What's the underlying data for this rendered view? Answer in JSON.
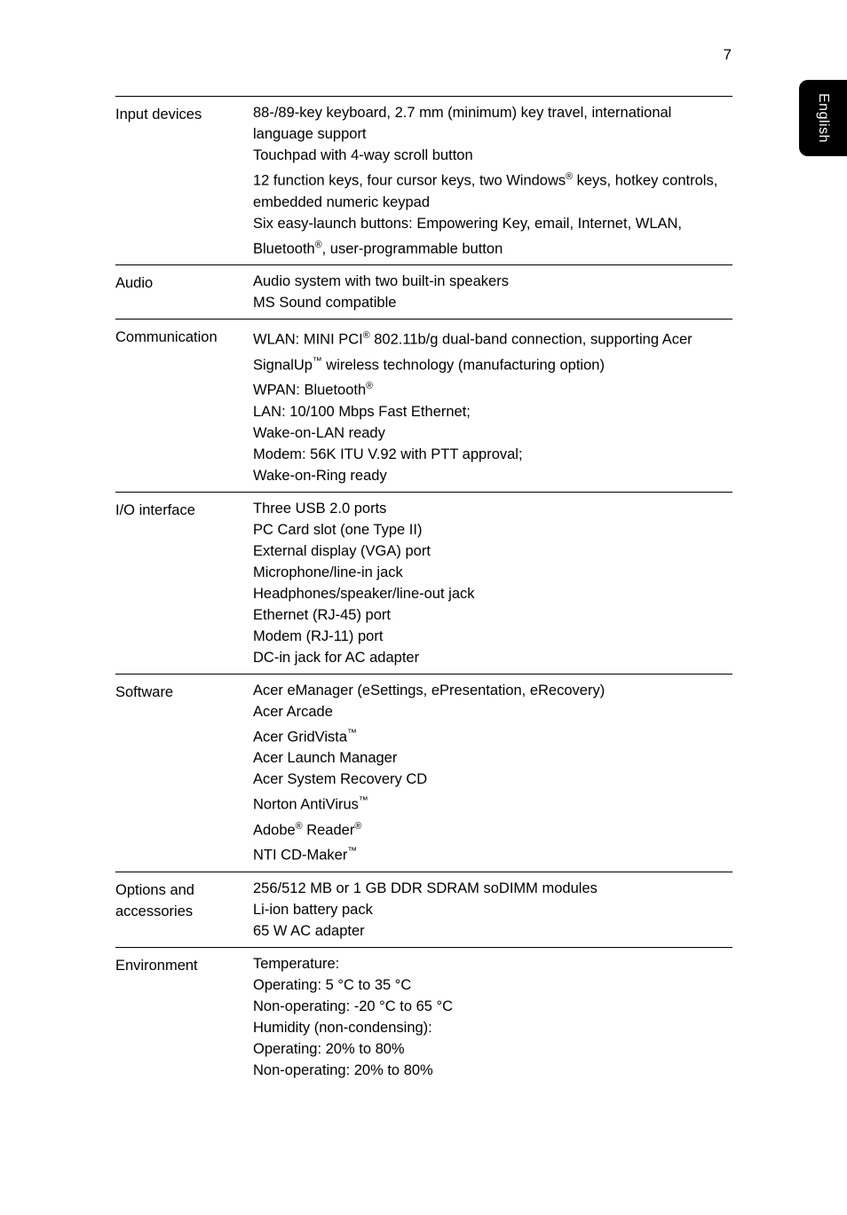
{
  "page_number": "7",
  "side_tab": "English",
  "rows": [
    {
      "label": "Input devices",
      "lines": [
        "88-/89-key keyboard, 2.7 mm (minimum) key travel, international language support",
        "Touchpad with 4-way scroll button",
        "12 function keys, four cursor keys, two Windows<sup>®</sup> keys, hotkey controls, embedded numeric keypad",
        "Six easy-launch buttons: Empowering Key, email, Internet, WLAN, Bluetooth<sup>®</sup>, user-programmable button"
      ]
    },
    {
      "label": "Audio",
      "lines": [
        "Audio system with two built-in speakers",
        "MS Sound compatible"
      ]
    },
    {
      "label": "Communication",
      "lines": [
        "WLAN: MINI PCI<sup>®</sup> 802.11b/g dual-band connection, supporting Acer SignalUp<sup>™</sup> wireless technology (manufacturing option)",
        "WPAN: Bluetooth<sup>®</sup>",
        "LAN: 10/100 Mbps Fast Ethernet;",
        "Wake-on-LAN ready",
        "Modem: 56K ITU V.92 with PTT approval;",
        "Wake-on-Ring ready"
      ]
    },
    {
      "label": "I/O interface",
      "lines": [
        "Three USB 2.0 ports",
        "PC Card slot (one Type II)",
        "External display (VGA) port",
        "Microphone/line-in jack",
        "Headphones/speaker/line-out jack",
        "Ethernet (RJ-45) port",
        "Modem (RJ-11) port",
        "DC-in jack for AC adapter"
      ]
    },
    {
      "label": "Software",
      "lines": [
        "Acer eManager (eSettings, ePresentation, eRecovery)",
        "Acer Arcade",
        "Acer GridVista<sup>™</sup>",
        "Acer Launch Manager",
        "Acer System Recovery CD",
        "Norton AntiVirus<sup>™</sup>",
        "Adobe<sup>®</sup> Reader<sup>®</sup>",
        "NTI CD-Maker<sup>™</sup>"
      ]
    },
    {
      "label": "Options and accessories",
      "lines": [
        "256/512 MB or 1 GB DDR SDRAM soDIMM modules",
        "Li-ion battery pack",
        "65 W AC adapter"
      ]
    },
    {
      "label": "Environment",
      "lines": [
        "Temperature:",
        "Operating: 5 °C to 35 °C",
        "Non-operating: -20 °C to 65 °C",
        "Humidity (non-condensing):",
        "Operating: 20% to 80%",
        "Non-operating: 20% to 80%"
      ]
    }
  ]
}
